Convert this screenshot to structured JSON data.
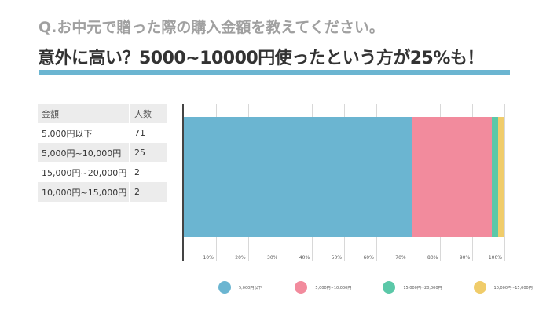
{
  "header": {
    "question": "Q.お中元で贈った際の購入金額を教えてください。",
    "headline": "意外に高い？5000~10000円使ったという方が25%も！"
  },
  "table": {
    "headers": [
      "金額",
      "人数"
    ],
    "rows": [
      [
        "5,000円以下",
        "71"
      ],
      [
        "5,000円~10,000円",
        "25"
      ],
      [
        "15,000円~20,000円",
        "2"
      ],
      [
        "10,000円~15,000円",
        "2"
      ]
    ]
  },
  "colors": {
    "accent": "#6bb5d1",
    "series": [
      "#6bb5d1",
      "#f28b9d",
      "#5bc8a8",
      "#f0cc6a"
    ]
  },
  "chart_data": {
    "type": "bar",
    "orientation": "horizontal",
    "stacked": "100%",
    "title": "",
    "xlabel": "",
    "ylabel": "",
    "xlim": [
      0,
      100
    ],
    "x_ticks": [
      "10%",
      "20%",
      "30%",
      "40%",
      "50%",
      "60%",
      "70%",
      "80%",
      "90%",
      "100%"
    ],
    "grid": true,
    "legend_position": "bottom",
    "categories": [
      ""
    ],
    "series": [
      {
        "name": "5,000円以下",
        "values": [
          71
        ],
        "color": "#6bb5d1"
      },
      {
        "name": "5,000円~10,000円",
        "values": [
          25
        ],
        "color": "#f28b9d"
      },
      {
        "name": "15,000円~20,000円",
        "values": [
          2
        ],
        "color": "#5bc8a8"
      },
      {
        "name": "10,000円~15,000円",
        "values": [
          2
        ],
        "color": "#f0cc6a"
      }
    ]
  }
}
